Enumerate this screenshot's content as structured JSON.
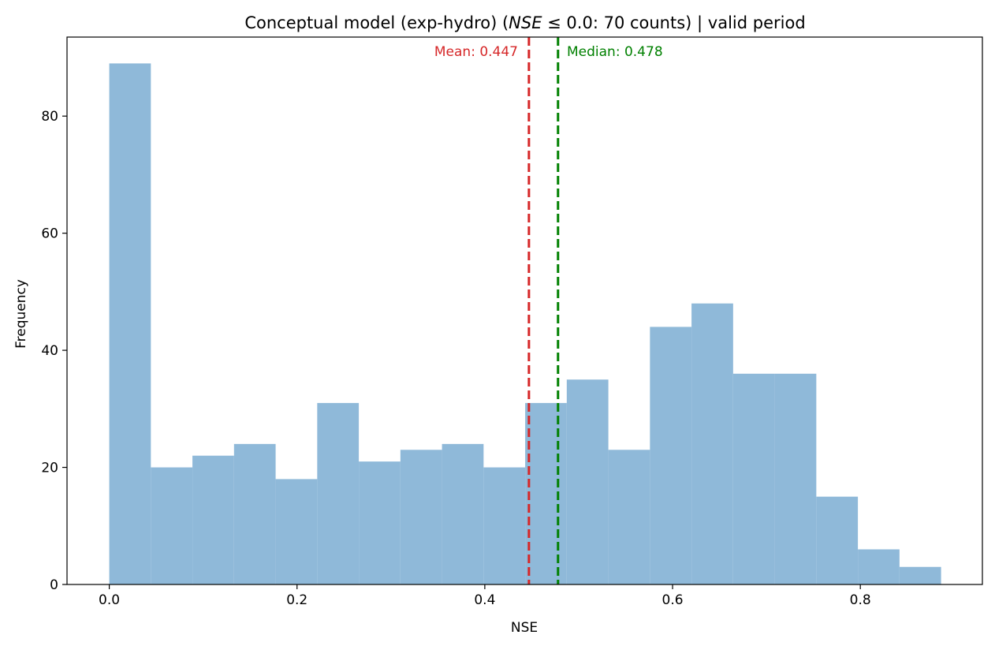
{
  "chart_data": {
    "type": "histogram",
    "title_parts": {
      "prefix": "Conceptual model (exp-hydro) (",
      "math": "NSE",
      "suffix": " ≤ 0.0:  70 counts) | valid period"
    },
    "xlabel": "NSE",
    "ylabel": "Frequency",
    "xlim": [
      -0.045,
      0.93
    ],
    "ylim": [
      0,
      93.5
    ],
    "xticks": [
      0.0,
      0.2,
      0.4,
      0.6,
      0.8
    ],
    "xtick_labels": [
      "0.0",
      "0.2",
      "0.4",
      "0.6",
      "0.8"
    ],
    "yticks": [
      0,
      20,
      40,
      60,
      80
    ],
    "ytick_labels": [
      "0",
      "20",
      "40",
      "60",
      "80"
    ],
    "bins": [
      0.0,
      0.0443,
      0.0886,
      0.1329,
      0.1772,
      0.2215,
      0.2658,
      0.3101,
      0.3544,
      0.3987,
      0.443,
      0.4873,
      0.5316,
      0.5759,
      0.6202,
      0.6645,
      0.7088,
      0.7531,
      0.7974,
      0.8417,
      0.886
    ],
    "counts": [
      89,
      20,
      22,
      24,
      18,
      31,
      21,
      23,
      24,
      20,
      31,
      35,
      23,
      44,
      48,
      36,
      36,
      15,
      6,
      3
    ],
    "bar_color": "#8fb9d9",
    "grid": false,
    "mean": {
      "value": 0.447,
      "label": "Mean: 0.447",
      "color": "#d62728"
    },
    "median": {
      "value": 0.478,
      "label": "Median: 0.478",
      "color": "#008000"
    }
  }
}
